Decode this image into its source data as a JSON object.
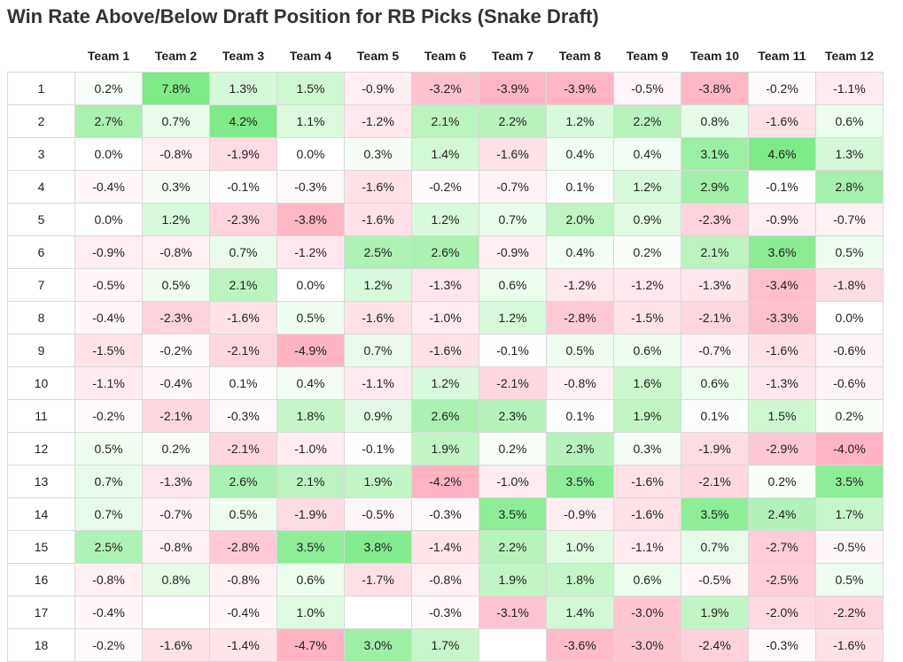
{
  "chart_data": {
    "type": "heatmap",
    "title": "Win Rate Above/Below Draft Position for RB Picks (Snake Draft)",
    "columns": [
      "Team 1",
      "Team 2",
      "Team 3",
      "Team 4",
      "Team 5",
      "Team 6",
      "Team 7",
      "Team 8",
      "Team 9",
      "Team 10",
      "Team 11",
      "Team 12"
    ],
    "rows": [
      "1",
      "2",
      "3",
      "4",
      "5",
      "6",
      "7",
      "8",
      "9",
      "10",
      "11",
      "12",
      "13",
      "14",
      "15",
      "16",
      "17",
      "18"
    ],
    "values": [
      [
        0.2,
        7.8,
        1.3,
        1.5,
        -0.9,
        -3.2,
        -3.9,
        -3.9,
        -0.5,
        -3.8,
        -0.2,
        -1.1
      ],
      [
        2.7,
        0.7,
        4.2,
        1.1,
        -1.2,
        2.1,
        2.2,
        1.2,
        2.2,
        0.8,
        -1.6,
        0.6
      ],
      [
        0.0,
        -0.8,
        -1.9,
        0.0,
        0.3,
        1.4,
        -1.6,
        0.4,
        0.4,
        3.1,
        4.6,
        1.3
      ],
      [
        -0.4,
        0.3,
        -0.1,
        -0.3,
        -1.6,
        -0.2,
        -0.7,
        0.1,
        1.2,
        2.9,
        -0.1,
        2.8
      ],
      [
        0.0,
        1.2,
        -2.3,
        -3.8,
        -1.6,
        1.2,
        0.7,
        2.0,
        0.9,
        -2.3,
        -0.9,
        -0.7
      ],
      [
        -0.9,
        -0.8,
        0.7,
        -1.2,
        2.5,
        2.6,
        -0.9,
        0.4,
        0.2,
        2.1,
        3.6,
        0.5
      ],
      [
        -0.5,
        0.5,
        2.1,
        0.0,
        1.2,
        -1.3,
        0.6,
        -1.2,
        -1.2,
        -1.3,
        -3.4,
        -1.8
      ],
      [
        -0.4,
        -2.3,
        -1.6,
        0.5,
        -1.6,
        -1.0,
        1.2,
        -2.8,
        -1.5,
        -2.1,
        -3.3,
        0.0
      ],
      [
        -1.5,
        -0.2,
        -2.1,
        -4.9,
        0.7,
        -1.6,
        -0.1,
        0.5,
        0.6,
        -0.7,
        -1.6,
        -0.6
      ],
      [
        -1.1,
        -0.4,
        0.1,
        0.4,
        -1.1,
        1.2,
        -2.1,
        -0.8,
        1.6,
        0.6,
        -1.3,
        -0.6
      ],
      [
        -0.2,
        -2.1,
        -0.3,
        1.8,
        0.9,
        2.6,
        2.3,
        0.1,
        1.9,
        0.1,
        1.5,
        0.2
      ],
      [
        0.5,
        0.2,
        -2.1,
        -1.0,
        -0.1,
        1.9,
        0.2,
        2.3,
        0.3,
        -1.9,
        -2.9,
        -4.0
      ],
      [
        0.7,
        -1.3,
        2.6,
        2.1,
        1.9,
        -4.2,
        -1.0,
        3.5,
        -1.6,
        -2.1,
        0.2,
        3.5
      ],
      [
        0.7,
        -0.7,
        0.5,
        -1.9,
        -0.5,
        -0.3,
        3.5,
        -0.9,
        -1.6,
        3.5,
        2.4,
        1.7
      ],
      [
        2.5,
        -0.8,
        -2.8,
        3.5,
        3.8,
        -1.4,
        2.2,
        1.0,
        -1.1,
        0.7,
        -2.7,
        -0.5
      ],
      [
        -0.8,
        0.8,
        -0.8,
        0.6,
        -1.7,
        -0.8,
        1.9,
        1.8,
        0.6,
        -0.5,
        -2.5,
        0.5
      ],
      [
        -0.4,
        null,
        -0.4,
        1.0,
        null,
        -0.3,
        -3.1,
        1.4,
        -3.0,
        1.9,
        -2.0,
        -2.2
      ],
      [
        -0.2,
        -1.6,
        -1.4,
        -4.7,
        3.0,
        1.7,
        null,
        -3.6,
        -3.0,
        -2.4,
        -0.3,
        -1.6
      ]
    ],
    "value_suffix": "%",
    "colors": {
      "positive": "#7eea88",
      "negative": "#ffb3c3",
      "neutral": "#ffffff"
    },
    "color_scale_max": 4.0
  }
}
